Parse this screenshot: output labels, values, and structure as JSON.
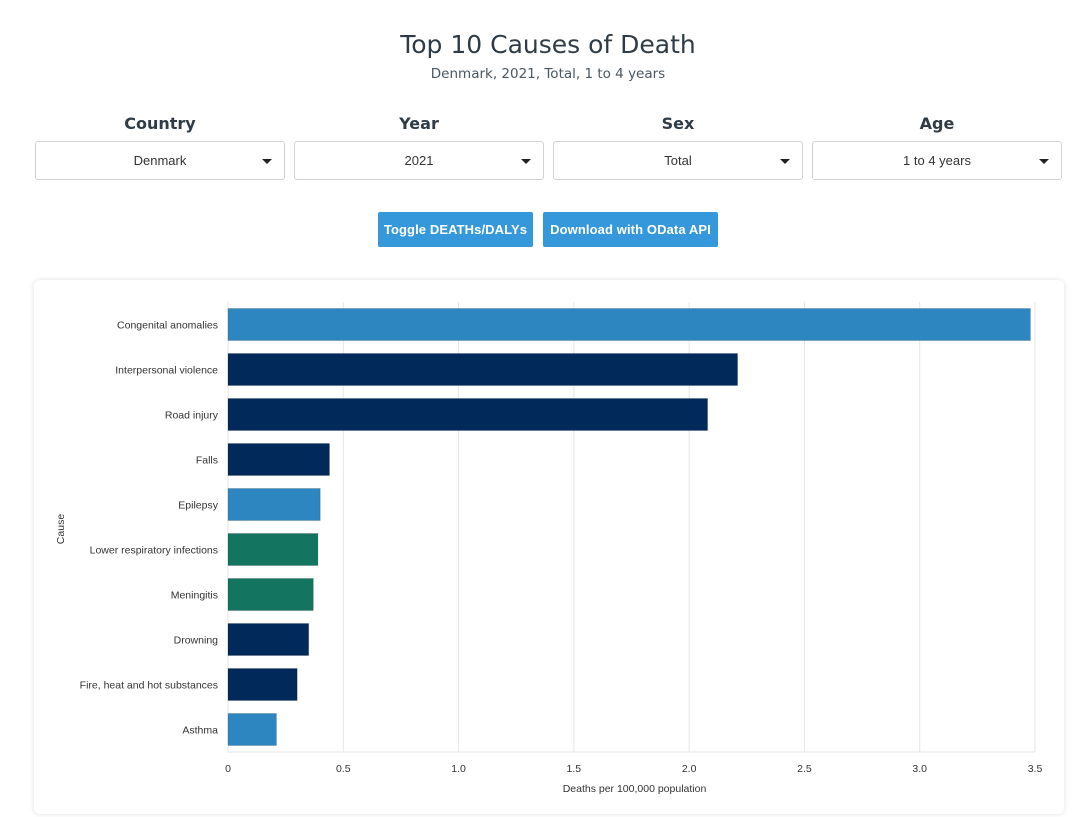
{
  "header": {
    "title": "Top 10 Causes of Death",
    "subtitle": "Denmark, 2021, Total, 1 to 4 years"
  },
  "filters": [
    {
      "label": "Country",
      "value": "Denmark"
    },
    {
      "label": "Year",
      "value": "2021"
    },
    {
      "label": "Sex",
      "value": "Total"
    },
    {
      "label": "Age",
      "value": "1 to 4 years"
    }
  ],
  "buttons": {
    "toggle": "Toggle DEATHs/DALYs",
    "download": "Download with OData API"
  },
  "colors": {
    "accent": "#3598db",
    "communicable": "#13755f",
    "noncommunicable": "#2e86c1",
    "injuries": "#012a5b"
  },
  "chart_data": {
    "type": "bar",
    "orientation": "horizontal",
    "xlabel": "Deaths per 100,000 population",
    "ylabel": "Cause",
    "xlim": [
      0,
      3.5
    ],
    "xticks": [
      "0",
      "0.5",
      "1.0",
      "1.5",
      "2.0",
      "2.5",
      "3.0",
      "3.5"
    ],
    "grid": true,
    "categories": [
      "Congenital anomalies",
      "Interpersonal violence",
      "Road injury",
      "Falls",
      "Epilepsy",
      "Lower respiratory infections",
      "Meningitis",
      "Drowning",
      "Fire, heat and hot substances",
      "Asthma"
    ],
    "values": [
      3.48,
      2.21,
      2.08,
      0.44,
      0.4,
      0.39,
      0.37,
      0.35,
      0.3,
      0.21
    ],
    "bar_colors": [
      "#2e86c1",
      "#012a5b",
      "#012a5b",
      "#012a5b",
      "#2e86c1",
      "#13755f",
      "#13755f",
      "#012a5b",
      "#012a5b",
      "#2e86c1"
    ]
  }
}
